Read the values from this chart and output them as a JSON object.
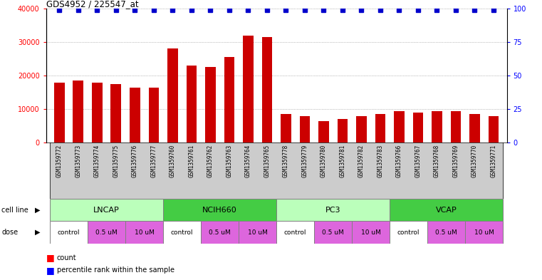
{
  "title": "GDS4952 / 225547_at",
  "samples": [
    "GSM1359772",
    "GSM1359773",
    "GSM1359774",
    "GSM1359775",
    "GSM1359776",
    "GSM1359777",
    "GSM1359760",
    "GSM1359761",
    "GSM1359762",
    "GSM1359763",
    "GSM1359764",
    "GSM1359765",
    "GSM1359778",
    "GSM1359779",
    "GSM1359780",
    "GSM1359781",
    "GSM1359782",
    "GSM1359783",
    "GSM1359766",
    "GSM1359767",
    "GSM1359768",
    "GSM1359769",
    "GSM1359770",
    "GSM1359771"
  ],
  "counts": [
    18000,
    18500,
    18000,
    17500,
    16500,
    16500,
    28000,
    23000,
    22500,
    25500,
    32000,
    31500,
    8500,
    8000,
    6500,
    7000,
    8000,
    8500,
    9500,
    9000,
    9500,
    9500,
    8500,
    8000
  ],
  "cell_lines": [
    {
      "label": "LNCAP",
      "start": 0,
      "end": 6,
      "color": "#bbffbb"
    },
    {
      "label": "NCIH660",
      "start": 6,
      "end": 12,
      "color": "#44cc44"
    },
    {
      "label": "PC3",
      "start": 12,
      "end": 18,
      "color": "#bbffbb"
    },
    {
      "label": "VCAP",
      "start": 18,
      "end": 24,
      "color": "#44cc44"
    }
  ],
  "dose_groups": [
    {
      "label": "control",
      "start": 0,
      "end": 2,
      "color": "#ffffff"
    },
    {
      "label": "0.5 uM",
      "start": 2,
      "end": 4,
      "color": "#dd66dd"
    },
    {
      "label": "10 uM",
      "start": 4,
      "end": 6,
      "color": "#dd66dd"
    },
    {
      "label": "control",
      "start": 6,
      "end": 8,
      "color": "#ffffff"
    },
    {
      "label": "0.5 uM",
      "start": 8,
      "end": 10,
      "color": "#dd66dd"
    },
    {
      "label": "10 uM",
      "start": 10,
      "end": 12,
      "color": "#dd66dd"
    },
    {
      "label": "control",
      "start": 12,
      "end": 14,
      "color": "#ffffff"
    },
    {
      "label": "0.5 uM",
      "start": 14,
      "end": 16,
      "color": "#dd66dd"
    },
    {
      "label": "10 uM",
      "start": 16,
      "end": 18,
      "color": "#dd66dd"
    },
    {
      "label": "control",
      "start": 18,
      "end": 20,
      "color": "#ffffff"
    },
    {
      "label": "0.5 uM",
      "start": 20,
      "end": 22,
      "color": "#dd66dd"
    },
    {
      "label": "10 uM",
      "start": 22,
      "end": 24,
      "color": "#dd66dd"
    }
  ],
  "bar_color": "#cc0000",
  "dot_color": "#0000cc",
  "ylim_left": [
    0,
    40000
  ],
  "ylim_right": [
    0,
    100
  ],
  "yticks_left": [
    0,
    10000,
    20000,
    30000,
    40000
  ],
  "yticks_right": [
    0,
    25,
    50,
    75,
    100
  ],
  "grid_color": "#888888",
  "tick_bg_color": "#cccccc"
}
